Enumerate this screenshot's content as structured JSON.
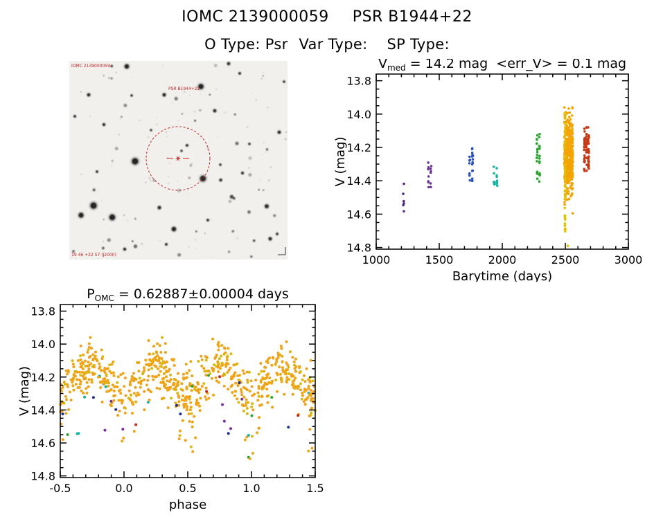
{
  "header": {
    "iomc_id": "IOMC 2139000059",
    "source_name": "PSR B1944+22",
    "o_type": "O Type: Psr",
    "var_type": "Var Type:",
    "sp_type": "SP Type:"
  },
  "finder_chart": {
    "label_top_left": "IOMC 2139000059",
    "label_source": "PSR B1944+22",
    "label_bottom": "19 46 +22 57 (J2000)",
    "circle_color": "#c32222",
    "bright_stars": [
      [
        83,
        8,
        3.2
      ],
      [
        190,
        37,
        3.8
      ],
      [
        137,
        49,
        2.4
      ],
      [
        230,
        4,
        2.2
      ],
      [
        95,
        145,
        4.6
      ],
      [
        193,
        170,
        4.2
      ],
      [
        35,
        209,
        4.6
      ],
      [
        17,
        223,
        3.6
      ],
      [
        62,
        226,
        4.2
      ],
      [
        151,
        243,
        3.2
      ],
      [
        285,
        210,
        2.8
      ],
      [
        303,
        103,
        2.3
      ],
      [
        170,
        122,
        1.8
      ],
      [
        162,
        130,
        1.5
      ],
      [
        210,
        72,
        2.3
      ],
      [
        50,
        92,
        2.0
      ],
      [
        28,
        49,
        2.3
      ],
      [
        130,
        212,
        2.4
      ],
      [
        250,
        162,
        1.9
      ],
      [
        290,
        257,
        2.4
      ],
      [
        80,
        272,
        2.0
      ],
      [
        246,
        18,
        1.8
      ],
      [
        300,
        250,
        1.7
      ],
      [
        8,
        80,
        1.8
      ],
      [
        218,
        150,
        1.6
      ],
      [
        118,
        100,
        1.5
      ],
      [
        260,
        120,
        1.6
      ],
      [
        40,
        160,
        1.7
      ],
      [
        90,
        50,
        1.6
      ],
      [
        200,
        230,
        1.8
      ],
      [
        310,
        30,
        1.6
      ],
      [
        140,
        265,
        1.8
      ]
    ]
  },
  "chart_data": [
    {
      "id": "lightcurve",
      "type": "scatter",
      "title": {
        "main": "V",
        "sub": "med",
        "rest": " = 14.2 mag  <err_V> = 0.1 mag"
      },
      "xlabel": "Barytime (days)",
      "ylabel": "V (mag)",
      "x_range": [
        1000,
        3000
      ],
      "y_range": [
        13.76,
        14.81
      ],
      "x_ticks": [
        1000,
        1500,
        2000,
        2500,
        3000
      ],
      "x_minor": 100,
      "y_ticks": [
        13.8,
        14.0,
        14.2,
        14.4,
        14.6,
        14.8
      ],
      "y_minor": 0.05,
      "y_axis_note": "magnitude increases downward",
      "grid": false,
      "clusters": [
        {
          "epoch": 1,
          "color": "#4f2a7d",
          "t": 1216,
          "cols": 1,
          "colgap": 0,
          "jitter": 4,
          "v": 14.49,
          "v_spread": 0.06,
          "n": 6
        },
        {
          "epoch": 2,
          "color": "#6d3596",
          "t": 1424,
          "cols": 2,
          "colgap": 20,
          "jitter": 3,
          "v": 14.37,
          "v_spread": 0.05,
          "n": 13
        },
        {
          "epoch": 3,
          "color": "#2a52be",
          "t": 1753,
          "cols": 2,
          "colgap": 22,
          "jitter": 3,
          "v": 14.3,
          "v_spread": 0.06,
          "n": 22
        },
        {
          "epoch": 4,
          "color": "#17b3a3",
          "t": 1946,
          "cols": 2,
          "colgap": 24,
          "jitter": 3,
          "v": 14.39,
          "v_spread": 0.045,
          "n": 15
        },
        {
          "epoch": 5,
          "color": "#2aa62e",
          "t": 2286,
          "cols": 2,
          "colgap": 20,
          "jitter": 3,
          "v": 14.26,
          "v_spread": 0.085,
          "n": 32
        },
        {
          "epoch": 6,
          "color": "#f4a506",
          "t": 2526,
          "cols": 5,
          "colgap": 14,
          "jitter": 6,
          "v": 14.24,
          "v_spread": 0.125,
          "n": 430
        },
        {
          "epoch": 7,
          "color": "#e2c004",
          "t": 2498,
          "cols": 1,
          "colgap": 0,
          "jitter": 3,
          "v": 14.35,
          "v_spread": 0.21,
          "n": 55
        },
        {
          "epoch": 8,
          "color": "#c43a16",
          "t": 2668,
          "cols": 3,
          "colgap": 16,
          "jitter": 3,
          "v": 14.21,
          "v_spread": 0.08,
          "n": 65
        }
      ],
      "outliers": [
        {
          "t": 2520,
          "v": 14.79,
          "color": "#e2c004"
        }
      ]
    },
    {
      "id": "phase-folded",
      "type": "scatter",
      "title": {
        "main": "P",
        "sub": "OMC",
        "rest": " = 0.62887±0.00004 days"
      },
      "xlabel": "phase",
      "ylabel": "V (mag)",
      "x_range": [
        -0.5,
        1.5
      ],
      "y_range": [
        13.76,
        14.81
      ],
      "x_ticks": [
        -0.5,
        0.0,
        0.5,
        1.0,
        1.5
      ],
      "x_minor": 0.1,
      "y_ticks": [
        13.8,
        14.0,
        14.2,
        14.4,
        14.6,
        14.8
      ],
      "y_minor": 0.05,
      "grid": false,
      "model": {
        "n": 780,
        "v_mean": 14.22,
        "amplitude": 0.09,
        "sigma": 0.075,
        "dip_extra": 0.32,
        "dip_width": 0.14,
        "dip_prob": 0.3,
        "v_bright_limit": 13.96,
        "v_faint_limit": 14.73,
        "point_color": "#f0a315",
        "alt_color": "#d9b90e",
        "alt_frac": 0.12,
        "outlier_colors": [
          "#1f2f8e",
          "#c62817",
          "#2da32f",
          "#15b3a5",
          "#7a2f9e"
        ],
        "outlier_frac": 0.04
      }
    }
  ]
}
